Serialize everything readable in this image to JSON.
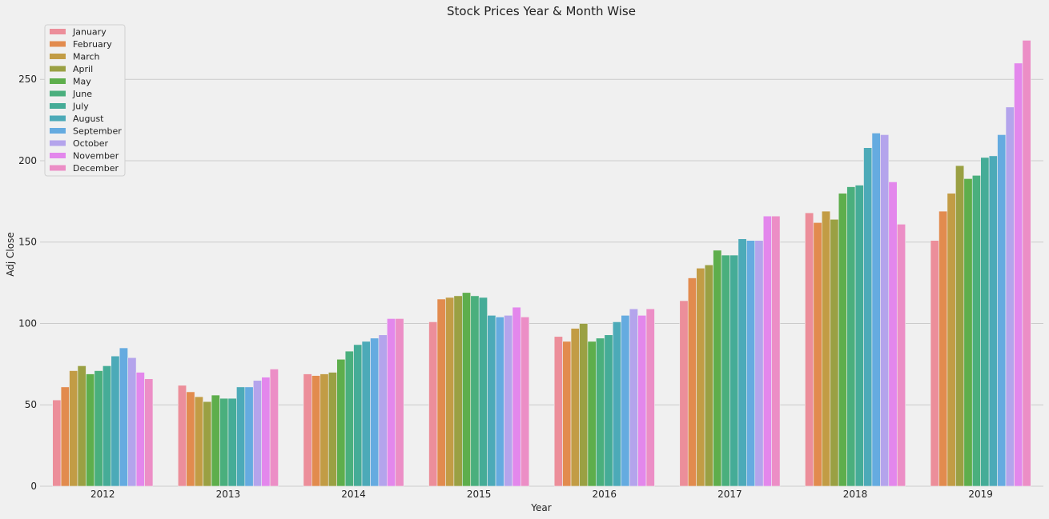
{
  "chart_data": {
    "type": "bar",
    "title": "Stock Prices Year & Month Wise",
    "xlabel": "Year",
    "ylabel": "Adj Close",
    "ylim": [
      0,
      285
    ],
    "yticks": [
      0,
      50,
      100,
      150,
      200,
      250
    ],
    "grid": "y",
    "legend_position": "top-left",
    "categories": [
      "2012",
      "2013",
      "2014",
      "2015",
      "2016",
      "2017",
      "2018",
      "2019"
    ],
    "series": [
      {
        "name": "January",
        "color": "#ec8e9a",
        "values": [
          53,
          62,
          69,
          101,
          92,
          114,
          168,
          151
        ]
      },
      {
        "name": "February",
        "color": "#e28b4e",
        "values": [
          61,
          58,
          68,
          115,
          89,
          128,
          162,
          169
        ]
      },
      {
        "name": "March",
        "color": "#c29c45",
        "values": [
          71,
          55,
          69,
          116,
          97,
          134,
          169,
          180
        ]
      },
      {
        "name": "April",
        "color": "#9aa043",
        "values": [
          74,
          52,
          70,
          117,
          100,
          136,
          164,
          197
        ]
      },
      {
        "name": "May",
        "color": "#5eae4c",
        "values": [
          69,
          56,
          78,
          119,
          89,
          145,
          180,
          189
        ]
      },
      {
        "name": "June",
        "color": "#4aaf7d",
        "values": [
          71,
          54,
          83,
          117,
          91,
          142,
          184,
          191
        ]
      },
      {
        "name": "July",
        "color": "#45ac97",
        "values": [
          74,
          54,
          87,
          116,
          93,
          142,
          185,
          202
        ]
      },
      {
        "name": "August",
        "color": "#4caab8",
        "values": [
          80,
          61,
          89,
          105,
          101,
          152,
          208,
          203
        ]
      },
      {
        "name": "September",
        "color": "#65abe0",
        "values": [
          85,
          61,
          91,
          104,
          105,
          151,
          217,
          216
        ]
      },
      {
        "name": "October",
        "color": "#b4a4ec",
        "values": [
          79,
          65,
          93,
          105,
          109,
          151,
          216,
          233
        ]
      },
      {
        "name": "November",
        "color": "#e387ec",
        "values": [
          70,
          67,
          103,
          110,
          105,
          166,
          187,
          260
        ]
      },
      {
        "name": "December",
        "color": "#ec8ec6",
        "values": [
          66,
          72,
          103,
          104,
          109,
          166,
          161,
          274
        ]
      }
    ]
  }
}
